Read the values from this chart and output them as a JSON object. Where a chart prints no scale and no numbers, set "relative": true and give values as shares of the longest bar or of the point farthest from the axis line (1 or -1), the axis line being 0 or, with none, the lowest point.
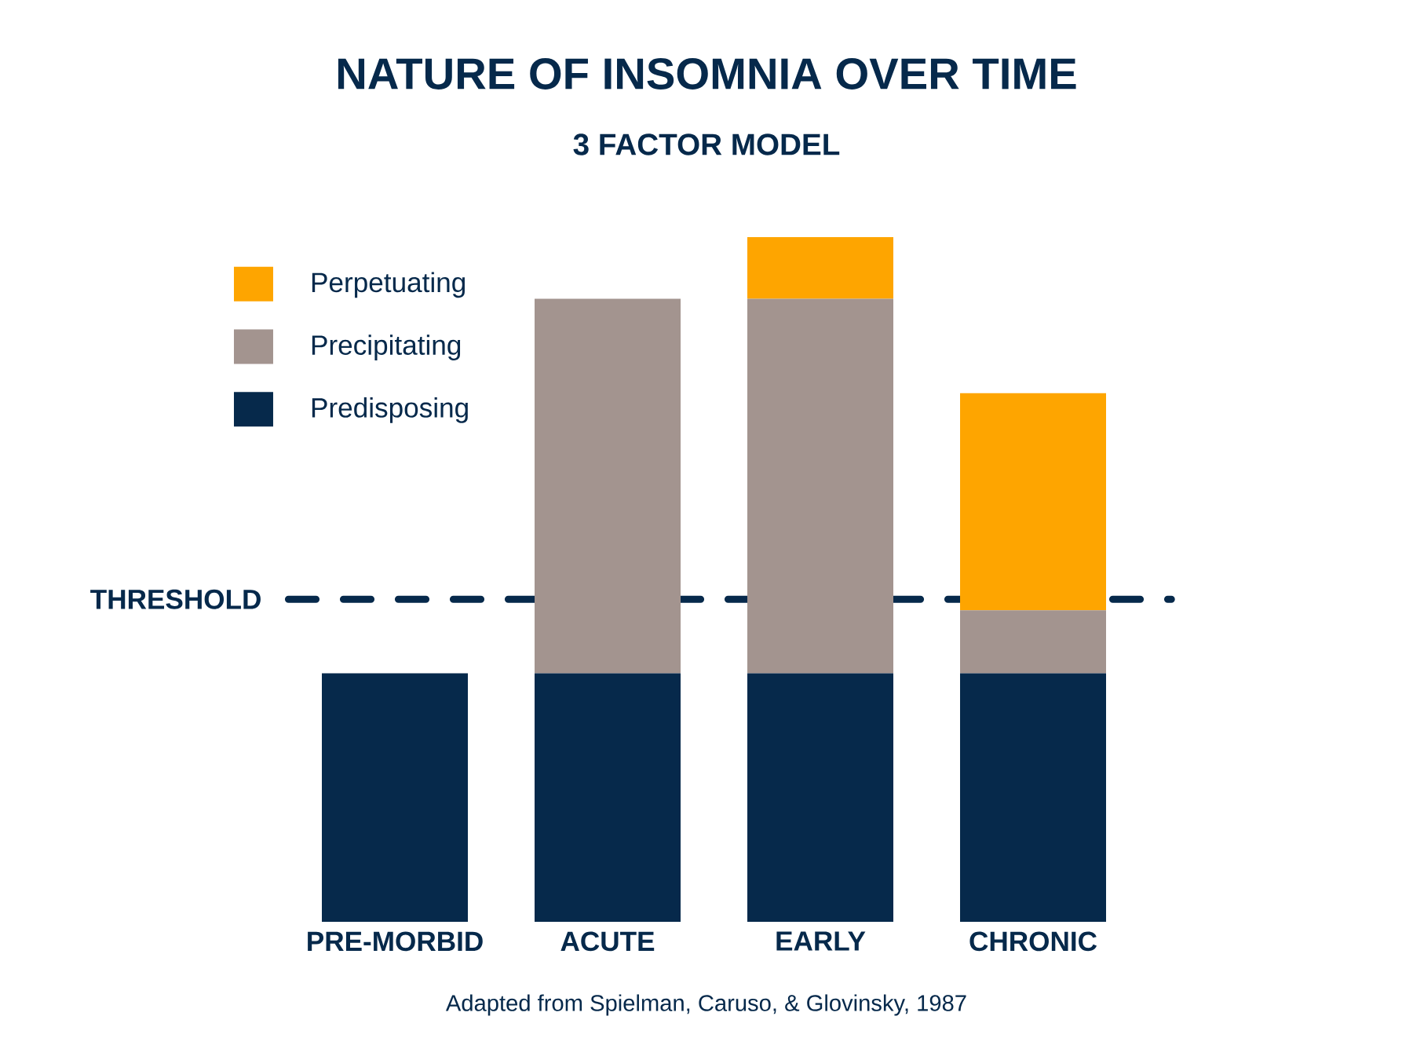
{
  "chart_data": {
    "type": "bar",
    "title": "NATURE OF INSOMNIA OVER TIME",
    "subtitle": "3 FACTOR MODEL",
    "categories": [
      "PRE-MORBID",
      "ACUTE",
      "EARLY",
      "CHRONIC"
    ],
    "stacked": true,
    "relative": true,
    "legend": "top left",
    "series": [
      {
        "name": "Predisposing",
        "color": "#06294b",
        "values": [
          0.363,
          0.363,
          0.363,
          0.363
        ]
      },
      {
        "name": "Precipitating",
        "color": "#a3948f",
        "values": [
          0,
          0.547,
          0.547,
          0.092
        ]
      },
      {
        "name": "Perpetuating",
        "color": "#fea500",
        "values": [
          0,
          0,
          0.09,
          0.317
        ]
      }
    ],
    "ref_lines": [
      {
        "axis": "y",
        "value": 0.471,
        "label": "THRESHOLD",
        "color": "#06294b",
        "line_style": "dashed"
      }
    ],
    "annotations": [
      "Adapted from Spielman, Caruso, & Glovinsky, 1987"
    ]
  }
}
